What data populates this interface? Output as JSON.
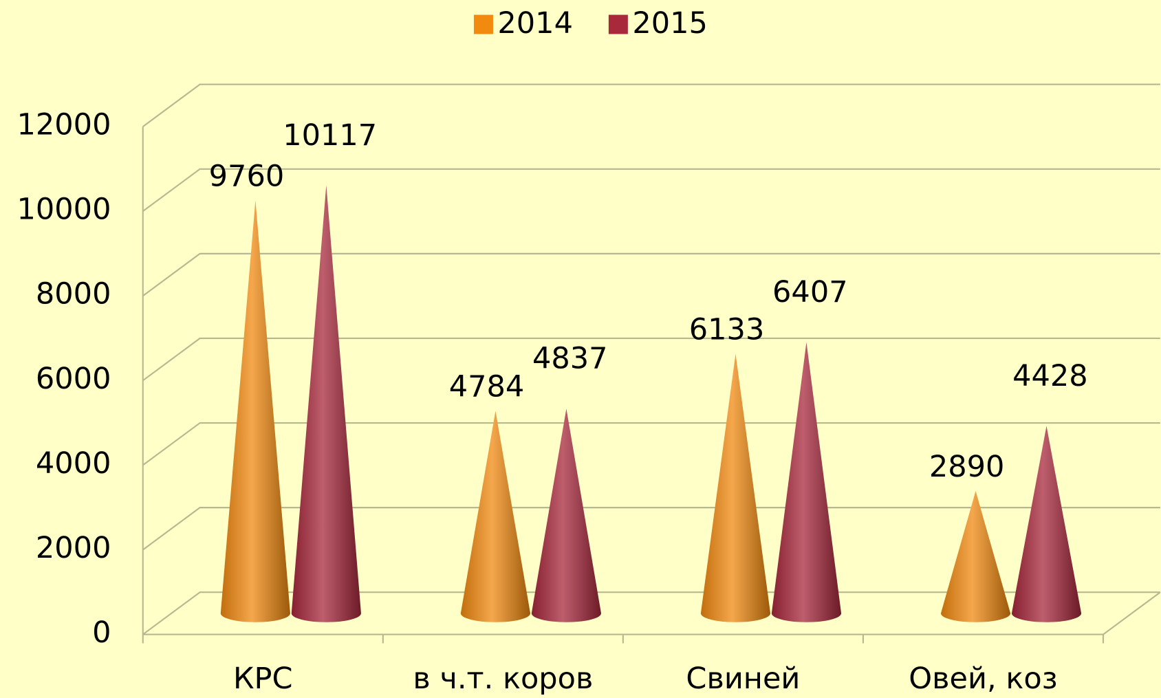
{
  "chart_data": {
    "type": "bar",
    "categories": [
      "КРС",
      "в ч.т. коров",
      "Свиней",
      "Овей, коз"
    ],
    "series": [
      {
        "name": "2014",
        "color": "#f28a10",
        "values": [
          9760,
          4784,
          6133,
          2890
        ]
      },
      {
        "name": "2015",
        "color": "#a8283c",
        "values": [
          10117,
          4837,
          6407,
          4428
        ]
      }
    ],
    "ylim": [
      0,
      12000
    ],
    "yticks": [
      0,
      2000,
      4000,
      6000,
      8000,
      10000,
      12000
    ],
    "grid": true,
    "legend": "top"
  }
}
